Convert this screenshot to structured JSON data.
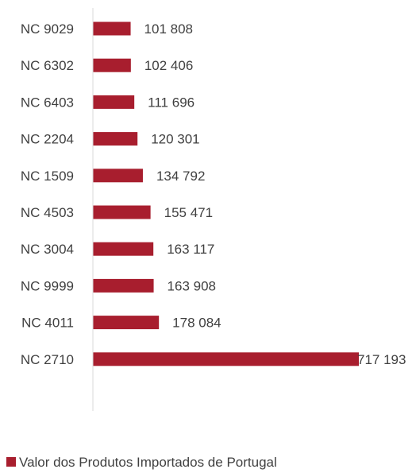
{
  "chart_data": {
    "type": "bar",
    "orientation": "horizontal",
    "categories": [
      "NC 9029",
      "NC 6302",
      "NC 6403",
      "NC 2204",
      "NC 1509",
      "NC 4503",
      "NC 3004",
      "NC 9999",
      "NC 4011",
      "NC 2710"
    ],
    "value_labels": [
      "101 808",
      "102 406",
      "111 696",
      "120 301",
      "134 792",
      "155 471",
      "163 117",
      "163 908",
      "178 084",
      "717 193"
    ],
    "series": [
      {
        "name": "Valor dos Produtos Importados de Portugal",
        "values": [
          101808,
          102406,
          111696,
          120301,
          134792,
          155471,
          163117,
          163908,
          178084,
          717193
        ]
      }
    ],
    "xlim": [
      0,
      717193
    ],
    "legend_position": "bottom-left",
    "grid": false,
    "colors": {
      "bar": "#a81e2e",
      "axis": "#d9d9d9",
      "text": "#404040"
    }
  }
}
